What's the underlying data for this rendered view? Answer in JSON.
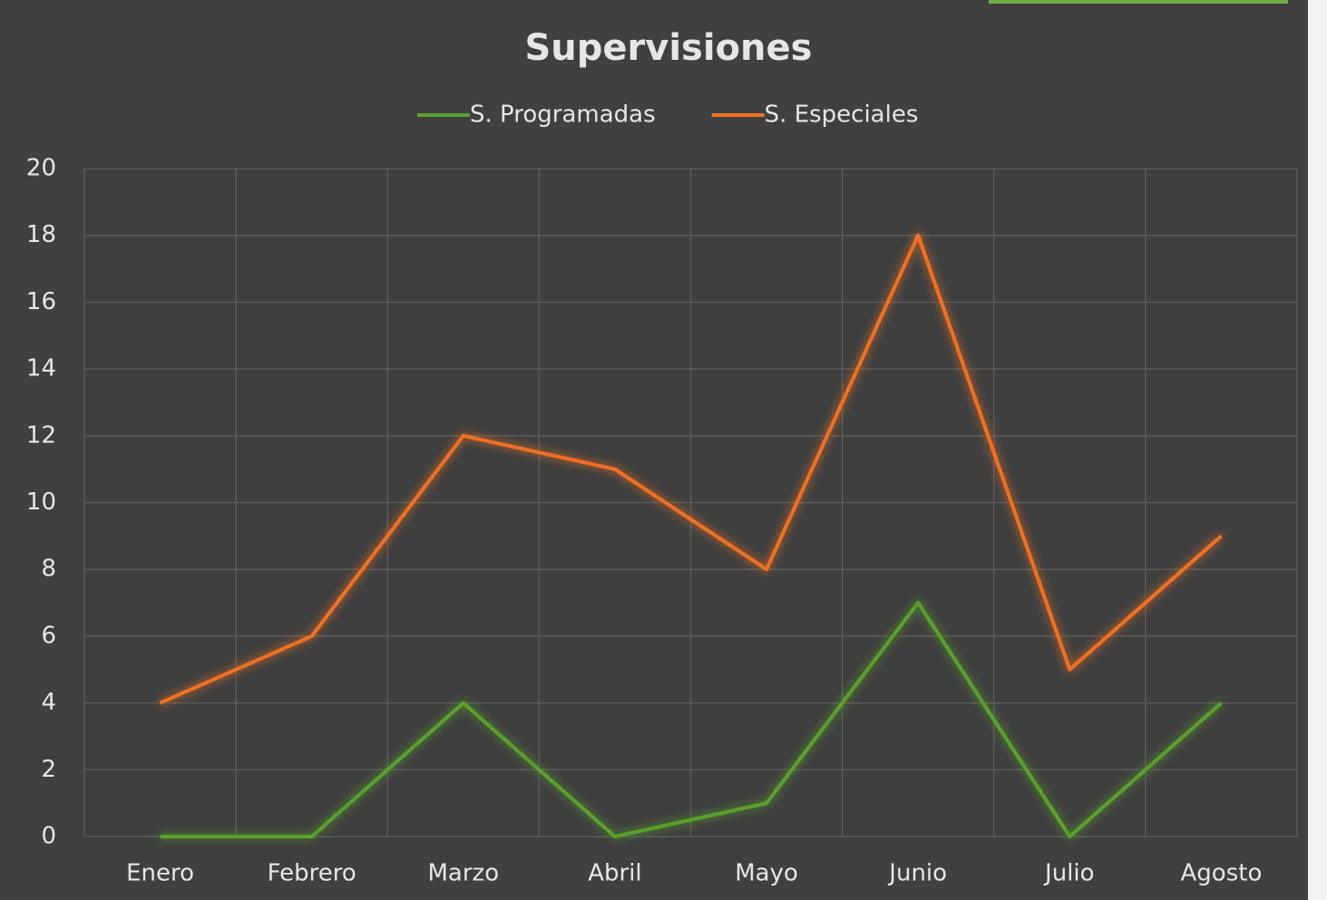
{
  "chart_data": {
    "type": "line",
    "title": "Supervisiones",
    "categories": [
      "Enero",
      "Febrero",
      "Marzo",
      "Abril",
      "Mayo",
      "Junio",
      "Julio",
      "Agosto"
    ],
    "series": [
      {
        "name": "S. Programadas",
        "color": "#5aa02c",
        "values": [
          0,
          0,
          4,
          0,
          1,
          7,
          0,
          4
        ]
      },
      {
        "name": "S. Especiales",
        "color": "#f07020",
        "values": [
          4,
          6,
          12,
          11,
          8,
          18,
          5,
          9
        ]
      }
    ],
    "ylim": [
      0,
      20
    ],
    "yticks": [
      0,
      2,
      4,
      6,
      8,
      10,
      12,
      14,
      16,
      18,
      20
    ],
    "grid": true,
    "legend": "top"
  }
}
